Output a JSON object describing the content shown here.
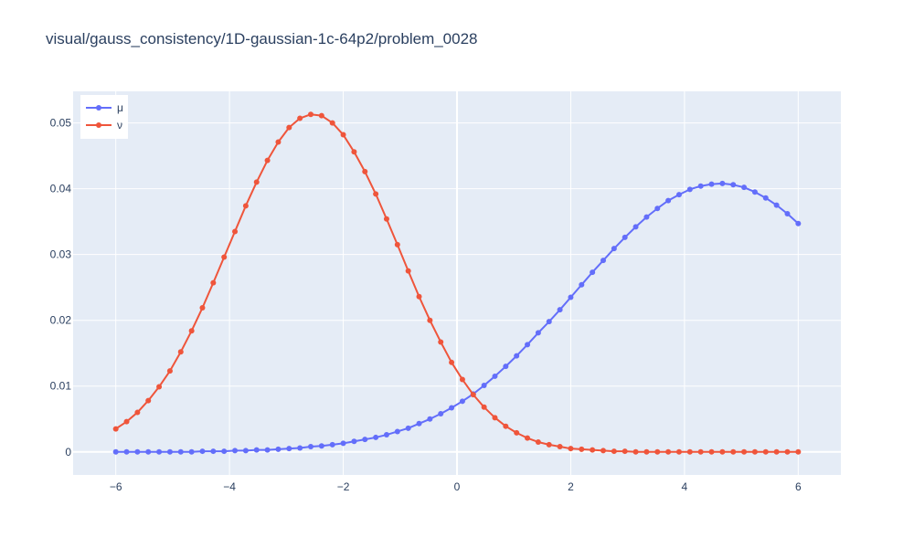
{
  "chart_data": {
    "type": "line",
    "title": "visual/gauss_consistency/1D-gaussian-1c-64p2/problem_0028",
    "xlabel": "",
    "ylabel": "",
    "xlim": [
      -6.75,
      6.75
    ],
    "ylim": [
      -0.0035,
      0.0548
    ],
    "x_ticks": [
      -6,
      -4,
      -2,
      0,
      2,
      4,
      6
    ],
    "x_tick_labels": [
      "−6",
      "−4",
      "−2",
      "0",
      "2",
      "4",
      "6"
    ],
    "y_ticks": [
      0,
      0.01,
      0.02,
      0.03,
      0.04,
      0.05
    ],
    "y_tick_labels": [
      "0",
      "0.01",
      "0.02",
      "0.03",
      "0.04",
      "0.05"
    ],
    "grid": true,
    "legend_position": "top-left",
    "x_range": [
      -6,
      6
    ],
    "n_points": 64,
    "series": [
      {
        "name": "μ",
        "color": "#636efa",
        "values": [
          0.0,
          0.0,
          0.0,
          0.0,
          0.0,
          0.0,
          0.0,
          0.0,
          0.0001,
          0.0001,
          0.0001,
          0.0002,
          0.0002,
          0.0003,
          0.0003,
          0.0004,
          0.0005,
          0.0006,
          0.0008,
          0.0009,
          0.0011,
          0.0013,
          0.0016,
          0.0019,
          0.0022,
          0.0026,
          0.0031,
          0.0036,
          0.0043,
          0.005,
          0.0058,
          0.0067,
          0.0077,
          0.0088,
          0.0101,
          0.0115,
          0.013,
          0.0146,
          0.0163,
          0.0181,
          0.0198,
          0.0216,
          0.0235,
          0.0254,
          0.0273,
          0.0291,
          0.0309,
          0.0326,
          0.0342,
          0.0357,
          0.037,
          0.0382,
          0.0391,
          0.0399,
          0.0404,
          0.0407,
          0.0408,
          0.0406,
          0.0402,
          0.0395,
          0.0386,
          0.0375,
          0.0362,
          0.0347
        ]
      },
      {
        "name": "ν",
        "color": "#ef553b",
        "values": [
          0.0035,
          0.0046,
          0.006,
          0.0078,
          0.0099,
          0.0123,
          0.0152,
          0.0184,
          0.0219,
          0.0257,
          0.0296,
          0.0335,
          0.0374,
          0.041,
          0.0443,
          0.0471,
          0.0493,
          0.0507,
          0.0513,
          0.0511,
          0.05,
          0.0482,
          0.0456,
          0.0426,
          0.0392,
          0.0354,
          0.0315,
          0.0275,
          0.0236,
          0.02,
          0.0167,
          0.0136,
          0.011,
          0.0087,
          0.0068,
          0.0052,
          0.0039,
          0.0029,
          0.0021,
          0.0015,
          0.0011,
          0.0008,
          0.0005,
          0.0004,
          0.0003,
          0.0002,
          0.0001,
          0.0001,
          0.0,
          0.0,
          0.0,
          0.0,
          0.0,
          0.0,
          0.0,
          0.0,
          0.0,
          0.0,
          0.0,
          0.0,
          0.0,
          0.0,
          0.0,
          0.0
        ]
      }
    ]
  }
}
